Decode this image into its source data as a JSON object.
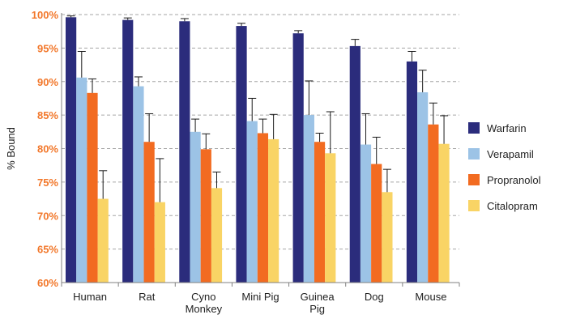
{
  "chart_data": {
    "type": "bar",
    "title": "",
    "xlabel": "",
    "ylabel": "% Bound",
    "ylim": [
      60,
      100
    ],
    "yticks": [
      60,
      65,
      70,
      75,
      80,
      85,
      90,
      95,
      100
    ],
    "ytick_labels": [
      "60%",
      "65%",
      "70%",
      "75%",
      "80%",
      "85%",
      "90%",
      "95%",
      "100%"
    ],
    "grid": "horizontal dashed",
    "legend_position": "right",
    "categories": [
      "Human",
      "Rat",
      "Cyno Monkey",
      "Mini Pig",
      "Guinea Pig",
      "Dog",
      "Mouse"
    ],
    "category_lines": [
      [
        "Human"
      ],
      [
        "Rat"
      ],
      [
        "Cyno",
        "Monkey"
      ],
      [
        "Mini Pig"
      ],
      [
        "Guinea",
        "Pig"
      ],
      [
        "Dog"
      ],
      [
        "Mouse"
      ]
    ],
    "series": [
      {
        "name": "Warfarin",
        "color": "#2b2c7c",
        "values": [
          99.6,
          99.2,
          99.0,
          98.3,
          97.2,
          95.3,
          93.0
        ],
        "errors": [
          0.2,
          0.3,
          0.4,
          0.4,
          0.4,
          1.0,
          1.5
        ]
      },
      {
        "name": "Verapamil",
        "color": "#9cc3e6",
        "values": [
          90.6,
          89.3,
          82.5,
          84.1,
          85.0,
          80.6,
          88.4
        ],
        "errors": [
          3.9,
          1.4,
          1.9,
          3.4,
          5.1,
          4.6,
          3.3
        ]
      },
      {
        "name": "Propranolol",
        "color": "#f26b21",
        "values": [
          88.3,
          81.0,
          79.9,
          82.3,
          81.0,
          77.7,
          83.6
        ],
        "errors": [
          2.1,
          4.2,
          2.3,
          2.1,
          1.3,
          4.0,
          3.2
        ]
      },
      {
        "name": "Citalopram",
        "color": "#f9d465",
        "values": [
          72.5,
          72.0,
          74.1,
          81.4,
          79.3,
          73.5,
          80.7
        ],
        "errors": [
          4.2,
          6.5,
          2.4,
          3.7,
          6.2,
          3.4,
          4.2
        ]
      }
    ],
    "colors": {
      "tick_label": "#f2772a",
      "axis": "#808080",
      "grid": "#a6a6a6"
    }
  }
}
